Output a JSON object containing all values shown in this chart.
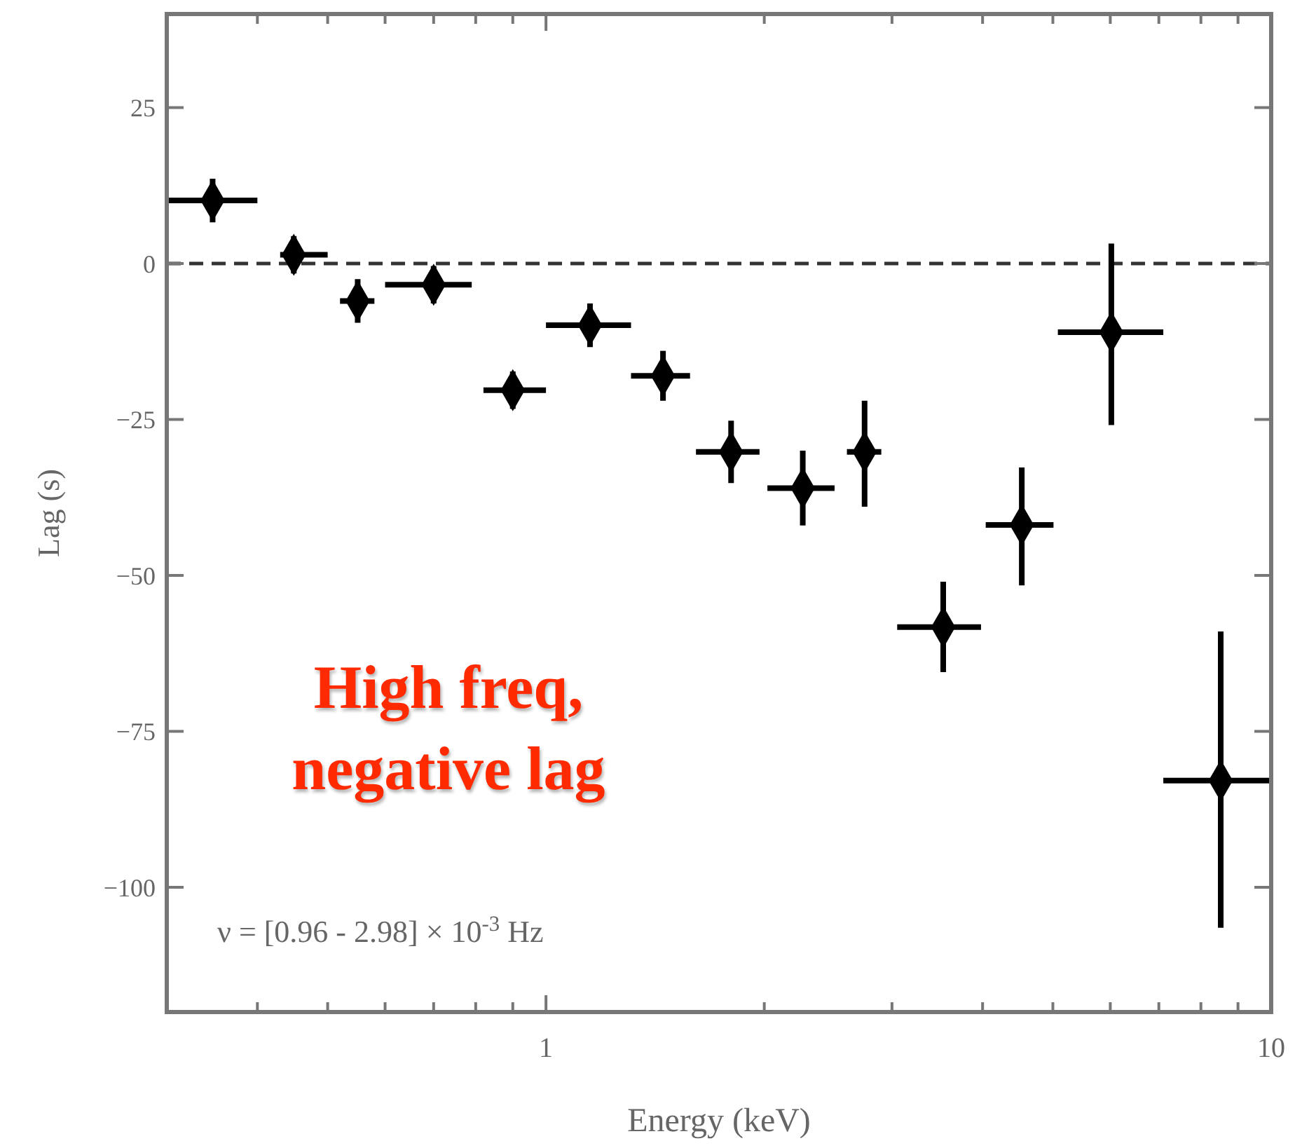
{
  "chart_data": {
    "type": "scatter",
    "xlabel": "Energy (keV)",
    "ylabel": "Lag (s)",
    "log": "x",
    "xlim": [
      0.3,
      10
    ],
    "ylim": [
      -120,
      40
    ],
    "xticks": [
      {
        "value": 0.3,
        "label": null
      },
      {
        "value": 0.4,
        "label": null
      },
      {
        "value": 0.5,
        "label": null
      },
      {
        "value": 0.6,
        "label": null
      },
      {
        "value": 0.7,
        "label": null
      },
      {
        "value": 0.8,
        "label": null
      },
      {
        "value": 0.9,
        "label": null
      },
      1,
      {
        "value": 2,
        "label": null
      },
      {
        "value": 3,
        "label": null
      },
      {
        "value": 4,
        "label": null
      },
      {
        "value": 5,
        "label": null
      },
      {
        "value": 6,
        "label": null
      },
      {
        "value": 7,
        "label": null
      },
      {
        "value": 8,
        "label": null
      },
      {
        "value": 9,
        "label": null
      },
      10
    ],
    "yticks": [
      -100,
      -75,
      -50,
      -25,
      0,
      25
    ],
    "x": [
      0.347,
      0.449,
      0.55,
      0.7,
      0.9,
      1.15,
      1.45,
      1.8,
      2.26,
      2.75,
      3.53,
      4.53,
      6.02,
      8.52
    ],
    "series": [
      {
        "color": "#000000",
        "values": [
          10.1,
          1.4,
          -6,
          -3.4,
          -20.3,
          -9.9,
          -18,
          -30.2,
          -36,
          -30.2,
          -58.3,
          -41.9,
          -11,
          -82.9
        ],
        "errors": [
          [
            6.6,
            13.6
          ],
          [
            -1.6,
            4.4
          ],
          [
            -9.5,
            -2.5
          ],
          [
            -6.4,
            -0.4
          ],
          [
            -23.3,
            -17.3
          ],
          [
            -13.4,
            -6.4
          ],
          [
            -22,
            -14
          ],
          [
            -35.2,
            -25.2
          ],
          [
            -42,
            -30
          ],
          [
            -39,
            -22
          ],
          [
            -65.5,
            -51
          ],
          [
            -51.6,
            -32.7
          ],
          [
            -25.9,
            3.2
          ],
          [
            -106.5,
            -59
          ]
        ],
        "xerrors": [
          [
            0.3,
            0.4
          ],
          [
            0.43,
            0.5
          ],
          [
            0.52,
            0.58
          ],
          [
            0.6,
            0.79
          ],
          [
            0.82,
            1.0
          ],
          [
            1.0,
            1.31
          ],
          [
            1.31,
            1.58
          ],
          [
            1.61,
            1.97
          ],
          [
            2.02,
            2.5
          ],
          [
            2.6,
            2.9
          ],
          [
            3.05,
            3.98
          ],
          [
            4.04,
            5.01
          ],
          [
            5.08,
            7.1
          ],
          [
            7.1,
            10
          ]
        ]
      }
    ],
    "marker": "diamond",
    "grid": false,
    "ref_lines": [
      {
        "axis": "y",
        "value": 0,
        "line_style": "dashed",
        "color": "#333333"
      }
    ],
    "annotations": [
      "High freq,\nnegative lag",
      "ν = [0.96 - 2.98] × 10$^{-3}$ Hz"
    ]
  }
}
